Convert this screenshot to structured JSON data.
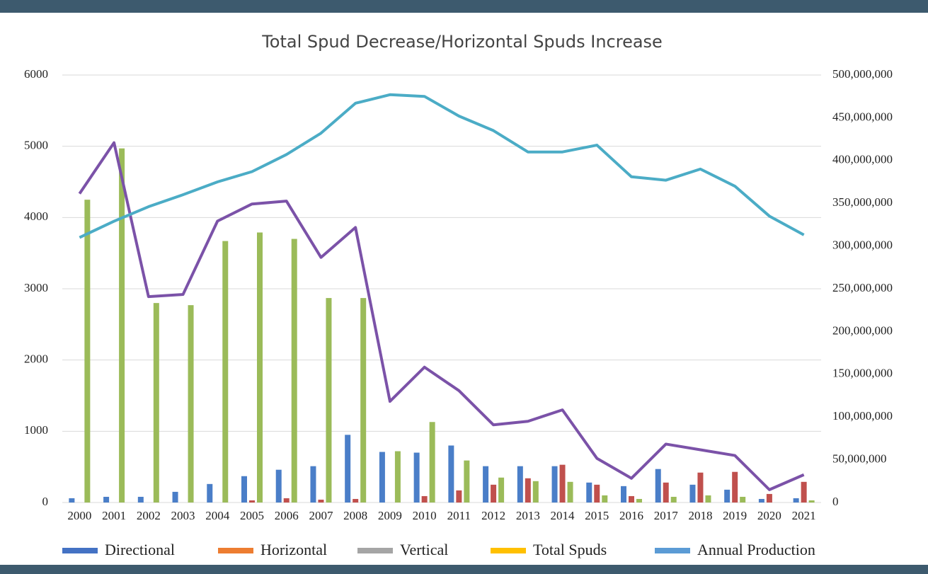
{
  "chart_data": {
    "type": "bar_line",
    "title": "Total Spud Decrease/Horizontal Spuds Increase",
    "categories": [
      "2000",
      "2001",
      "2002",
      "2003",
      "2004",
      "2005",
      "2006",
      "2007",
      "2008",
      "2009",
      "2010",
      "2011",
      "2012",
      "2013",
      "2014",
      "2015",
      "2016",
      "2017",
      "2018",
      "2019",
      "2020",
      "2021"
    ],
    "series": [
      {
        "name": "Directional",
        "kind": "bar",
        "color": "#4a7ec8",
        "legend_color": "#4472c4",
        "values": [
          60,
          80,
          80,
          150,
          260,
          370,
          460,
          510,
          950,
          710,
          700,
          800,
          510,
          510,
          510,
          280,
          230,
          470,
          250,
          180,
          50,
          60
        ]
      },
      {
        "name": "Horizontal",
        "kind": "bar",
        "color": "#c0504d",
        "legend_color": "#ed7d31",
        "values": [
          0,
          0,
          0,
          0,
          0,
          30,
          60,
          40,
          50,
          0,
          90,
          170,
          250,
          340,
          530,
          250,
          90,
          280,
          420,
          430,
          120,
          290
        ]
      },
      {
        "name": "Vertical",
        "kind": "bar",
        "color": "#9bbb59",
        "legend_color": "#a5a5a5",
        "values": [
          4250,
          4970,
          2800,
          2770,
          3670,
          3790,
          3700,
          2870,
          2870,
          720,
          1130,
          590,
          350,
          300,
          290,
          100,
          50,
          80,
          100,
          80,
          0,
          30
        ]
      },
      {
        "name": "Total Spuds",
        "kind": "line",
        "color": "#7b52a8",
        "legend_color": "#ffc000",
        "values": [
          4335,
          5050,
          2890,
          2920,
          3950,
          4190,
          4230,
          3440,
          3860,
          1420,
          1900,
          1570,
          1090,
          1140,
          1300,
          620,
          340,
          820,
          740,
          660,
          180,
          390
        ]
      },
      {
        "name": "Annual Production",
        "kind": "line",
        "axis": "y2",
        "color": "#4bacc6",
        "legend_color": "#5b9bd5",
        "values": [
          310000000,
          329000000,
          346000000,
          360000000,
          375000000,
          387000000,
          407000000,
          432000000,
          467000000,
          477000000,
          475000000,
          452000000,
          435000000,
          410000000,
          410000000,
          418000000,
          381000000,
          377000000,
          390000000,
          370000000,
          335000000,
          313000000
        ]
      }
    ],
    "ylim": [
      0,
      6000
    ],
    "yticks": [
      0,
      1000,
      2000,
      3000,
      4000,
      5000,
      6000
    ],
    "y2lim": [
      0,
      500000000
    ],
    "y2ticks": [
      0,
      {
        "value": 50000000,
        "label": "50,000,000"
      },
      {
        "value": 100000000,
        "label": "100,000,000"
      },
      {
        "value": 150000000,
        "label": "150,000,000"
      },
      {
        "value": 200000000,
        "label": "200,000,000"
      },
      {
        "value": 250000000,
        "label": "250,000,000"
      },
      {
        "value": 300000000,
        "label": "300,000,000"
      },
      {
        "value": 350000000,
        "label": "350,000,000"
      },
      {
        "value": 400000000,
        "label": "400,000,000"
      },
      {
        "value": 450000000,
        "label": "450,000,000"
      },
      {
        "value": 500000000,
        "label": "500,000,000"
      }
    ],
    "grid": true,
    "legend": "bottom"
  }
}
